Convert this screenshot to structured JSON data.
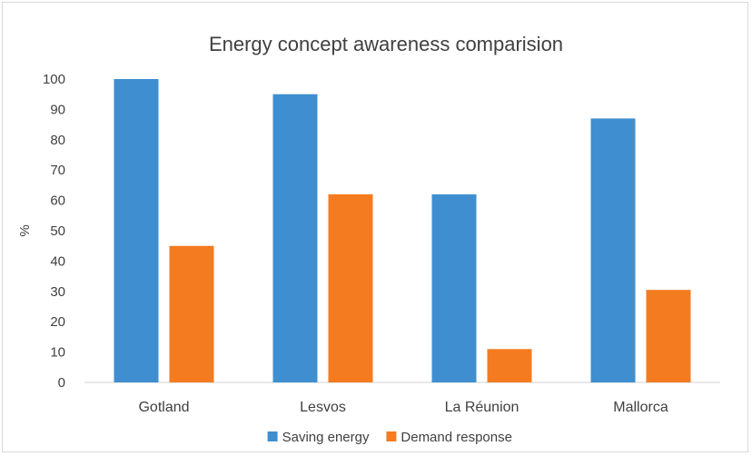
{
  "chart_data": {
    "type": "bar",
    "title": "Energy concept awareness comparision",
    "xlabel": "",
    "ylabel": "%",
    "ylim": [
      0,
      100
    ],
    "yticks": [
      0,
      10,
      20,
      30,
      40,
      50,
      60,
      70,
      80,
      90,
      100
    ],
    "categories": [
      "Gotland",
      "Lesvos",
      "La Réunion",
      "Mallorca"
    ],
    "series": [
      {
        "name": "Saving energy",
        "color": "#3f8fd0",
        "values": [
          100,
          95,
          62,
          87
        ]
      },
      {
        "name": "Demand response",
        "color": "#f47b20",
        "values": [
          45,
          62,
          11,
          30.5
        ]
      }
    ],
    "legend": "bottom-center",
    "grid": false
  }
}
